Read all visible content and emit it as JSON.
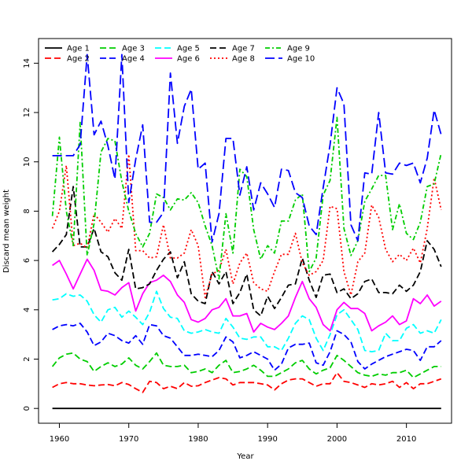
{
  "chart_data": {
    "type": "line",
    "xlabel": "Year",
    "ylabel": "Discard mean weight",
    "xlim": [
      1957,
      2016.5
    ],
    "ylim": [
      -0.6,
      15.0
    ],
    "x_ticks": [
      1960,
      1970,
      1980,
      1990,
      2000,
      2010
    ],
    "y_ticks": [
      0,
      2,
      4,
      6,
      8,
      10,
      12,
      14
    ],
    "x_tick_labels": [
      "1960",
      "1970",
      "1980",
      "1990",
      "2000",
      "2010"
    ],
    "y_tick_labels": [
      "0",
      "2",
      "4",
      "6",
      "8",
      "10",
      "12",
      "14"
    ],
    "legend_position": "top-left",
    "grid": false,
    "x": [
      1959,
      1960,
      1961,
      1962,
      1963,
      1964,
      1965,
      1966,
      1967,
      1968,
      1969,
      1970,
      1971,
      1972,
      1973,
      1974,
      1975,
      1976,
      1977,
      1978,
      1979,
      1980,
      1981,
      1982,
      1983,
      1984,
      1985,
      1986,
      1987,
      1988,
      1989,
      1990,
      1991,
      1992,
      1993,
      1994,
      1995,
      1996,
      1997,
      1998,
      1999,
      2000,
      2001,
      2002,
      2003,
      2004,
      2005,
      2006,
      2007,
      2008,
      2009,
      2010,
      2011,
      2012,
      2013,
      2014,
      2015
    ],
    "series": [
      {
        "name": "Age 1",
        "color": "#000000",
        "dash": "solid",
        "values": [
          0,
          0,
          0,
          0,
          0,
          0,
          0,
          0,
          0,
          0,
          0,
          0,
          0,
          0,
          0,
          0,
          0,
          0,
          0,
          0,
          0,
          0,
          0,
          0,
          0,
          0,
          0,
          0,
          0,
          0,
          0,
          0,
          0,
          0,
          0,
          0,
          0,
          0,
          0,
          0,
          0,
          0,
          0,
          0,
          0,
          0,
          0,
          0,
          0,
          0,
          0,
          0,
          0,
          0,
          0,
          0,
          0
        ]
      },
      {
        "name": "Age 2",
        "color": "#ff0000",
        "dash": "dashed",
        "values": [
          0.85,
          1.0,
          1.05,
          1.0,
          1.0,
          0.95,
          0.92,
          0.95,
          0.97,
          0.92,
          1.05,
          0.97,
          0.8,
          0.65,
          1.1,
          1.05,
          0.8,
          0.9,
          0.8,
          1.05,
          0.9,
          0.92,
          1.05,
          1.15,
          1.25,
          1.2,
          0.95,
          1.05,
          1.05,
          1.05,
          1.0,
          0.95,
          0.75,
          1.0,
          1.15,
          1.2,
          1.2,
          1.05,
          0.9,
          1.0,
          1.0,
          1.45,
          1.1,
          1.05,
          0.95,
          0.85,
          1.0,
          0.95,
          1.0,
          1.1,
          0.85,
          1.05,
          0.8,
          1.0,
          1.0,
          1.1,
          1.2
        ]
      },
      {
        "name": "Age 3",
        "color": "#00cd00",
        "dash": "dashed",
        "values": [
          1.7,
          2.05,
          2.2,
          2.25,
          2.0,
          1.9,
          1.5,
          1.7,
          1.85,
          1.7,
          1.8,
          2.05,
          1.75,
          1.6,
          1.9,
          2.25,
          1.75,
          1.7,
          1.7,
          1.75,
          1.45,
          1.5,
          1.6,
          1.45,
          1.75,
          1.95,
          1.45,
          1.5,
          1.6,
          1.75,
          1.55,
          1.3,
          1.3,
          1.45,
          1.6,
          1.85,
          1.95,
          1.6,
          1.4,
          1.55,
          1.65,
          2.15,
          1.95,
          1.7,
          1.45,
          1.35,
          1.3,
          1.4,
          1.35,
          1.45,
          1.45,
          1.55,
          1.25,
          1.4,
          1.55,
          1.7,
          1.7
        ]
      },
      {
        "name": "Age 4",
        "color": "#0000ff",
        "dash": "dashed",
        "values": [
          3.2,
          3.35,
          3.4,
          3.35,
          3.45,
          3.1,
          2.55,
          2.7,
          3.05,
          2.95,
          2.75,
          2.65,
          2.95,
          2.6,
          3.4,
          3.35,
          2.95,
          2.85,
          2.5,
          2.15,
          2.15,
          2.2,
          2.15,
          2.1,
          2.35,
          2.9,
          2.7,
          2.05,
          2.15,
          2.3,
          2.15,
          2.0,
          1.55,
          1.8,
          2.45,
          2.6,
          2.6,
          2.65,
          1.85,
          1.75,
          2.3,
          3.15,
          3.0,
          2.7,
          1.9,
          1.6,
          1.8,
          1.95,
          2.1,
          2.2,
          2.3,
          2.4,
          2.35,
          1.95,
          2.5,
          2.5,
          2.75
        ]
      },
      {
        "name": "Age 5",
        "color": "#00ffff",
        "dash": "dashed",
        "values": [
          4.4,
          4.45,
          4.65,
          4.55,
          4.6,
          4.35,
          3.8,
          3.5,
          4.0,
          4.1,
          3.7,
          3.95,
          3.7,
          3.4,
          3.9,
          4.75,
          4.05,
          3.7,
          3.65,
          3.15,
          3.05,
          3.1,
          3.2,
          3.1,
          3.05,
          3.65,
          3.3,
          2.85,
          2.8,
          2.9,
          2.9,
          2.5,
          2.5,
          2.35,
          2.85,
          3.45,
          3.75,
          3.6,
          2.85,
          2.35,
          3.0,
          3.8,
          4.0,
          3.6,
          3.2,
          2.35,
          2.3,
          2.35,
          3.05,
          2.75,
          2.75,
          3.25,
          3.4,
          3.05,
          3.15,
          3.05,
          3.6
        ]
      },
      {
        "name": "Age 6",
        "color": "#ff00ff",
        "dash": "solid",
        "values": [
          5.8,
          6.0,
          5.45,
          4.85,
          5.45,
          6.05,
          5.6,
          4.8,
          4.75,
          4.6,
          4.9,
          5.1,
          3.95,
          4.65,
          5.1,
          5.2,
          5.4,
          5.15,
          4.6,
          4.3,
          3.6,
          3.5,
          3.65,
          4.0,
          4.1,
          4.45,
          3.75,
          3.75,
          3.85,
          3.1,
          3.45,
          3.3,
          3.2,
          3.45,
          3.75,
          4.5,
          5.15,
          4.45,
          4.1,
          3.4,
          3.15,
          4.0,
          4.3,
          4.05,
          4.05,
          3.85,
          3.15,
          3.35,
          3.5,
          3.75,
          3.4,
          3.55,
          4.45,
          4.25,
          4.6,
          4.15,
          4.35
        ]
      },
      {
        "name": "Age 7",
        "color": "#000000",
        "dash": "dashed",
        "values": [
          6.35,
          6.65,
          7.05,
          9.0,
          6.55,
          6.55,
          7.3,
          6.35,
          6.15,
          5.5,
          5.2,
          6.45,
          4.85,
          4.9,
          5.05,
          5.6,
          6.05,
          6.35,
          5.3,
          5.95,
          4.65,
          4.35,
          4.25,
          5.55,
          5.05,
          5.55,
          4.25,
          4.7,
          5.45,
          4.0,
          3.75,
          4.55,
          4.05,
          4.5,
          5.0,
          5.05,
          6.1,
          5.2,
          4.5,
          5.4,
          5.45,
          4.7,
          4.85,
          4.45,
          4.65,
          5.15,
          5.25,
          4.7,
          4.7,
          4.65,
          5.0,
          4.75,
          5.0,
          5.55,
          6.8,
          6.45,
          5.75
        ]
      },
      {
        "name": "Age 8",
        "color": "#ff0000",
        "dash": "dotted",
        "values": [
          7.3,
          8.0,
          9.85,
          6.6,
          6.7,
          6.5,
          7.9,
          7.55,
          7.15,
          7.7,
          7.3,
          10.3,
          6.4,
          6.4,
          6.1,
          6.15,
          7.45,
          6.1,
          6.1,
          6.3,
          7.25,
          6.6,
          4.5,
          5.45,
          5.6,
          6.45,
          5.05,
          5.9,
          6.3,
          5.1,
          4.85,
          4.75,
          5.55,
          6.25,
          6.25,
          7.1,
          5.9,
          5.4,
          5.55,
          6.0,
          8.2,
          8.1,
          5.55,
          4.6,
          5.95,
          6.3,
          8.25,
          7.75,
          6.45,
          5.95,
          6.25,
          6.0,
          6.5,
          5.9,
          7.3,
          9.35,
          8.05
        ]
      },
      {
        "name": "Age 9",
        "color": "#00cd00",
        "dash": "dashdot",
        "values": [
          7.8,
          11.0,
          8.0,
          6.6,
          11.6,
          6.2,
          7.5,
          10.4,
          10.95,
          10.85,
          9.2,
          8.0,
          7.1,
          6.55,
          7.1,
          8.7,
          8.55,
          8.05,
          8.5,
          8.45,
          8.75,
          8.35,
          7.4,
          6.6,
          5.25,
          7.9,
          6.3,
          9.7,
          9.4,
          7.25,
          6.05,
          6.6,
          6.3,
          7.6,
          7.6,
          8.45,
          8.7,
          5.55,
          6.1,
          8.65,
          9.25,
          11.8,
          7.3,
          6.2,
          6.8,
          8.4,
          8.9,
          9.45,
          9.45,
          7.25,
          8.3,
          7.1,
          6.85,
          7.55,
          9.0,
          9.1,
          10.35
        ]
      },
      {
        "name": "Age 10",
        "color": "#0000ff",
        "dash": "longdash",
        "values": [
          10.25,
          10.25,
          10.25,
          10.25,
          10.7,
          14.35,
          11.1,
          11.65,
          10.65,
          9.3,
          14.35,
          8.35,
          10.1,
          11.5,
          7.55,
          7.55,
          7.95,
          13.6,
          10.75,
          12.25,
          12.95,
          9.7,
          9.95,
          6.75,
          7.9,
          10.95,
          10.95,
          8.65,
          9.8,
          8.05,
          9.15,
          8.7,
          8.15,
          9.7,
          9.65,
          8.75,
          8.55,
          7.4,
          7.05,
          8.95,
          10.7,
          13.0,
          12.35,
          7.45,
          6.8,
          9.55,
          9.5,
          12.0,
          9.55,
          9.5,
          9.95,
          9.85,
          9.95,
          9.15,
          10.15,
          12.1,
          11.1
        ]
      }
    ]
  }
}
